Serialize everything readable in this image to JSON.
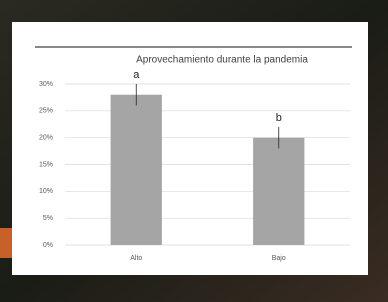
{
  "chart_data": {
    "type": "bar",
    "title": "Aprovechamiento durante la pandemia",
    "categories": [
      "Alto",
      "Bajo"
    ],
    "values": [
      28,
      20
    ],
    "errors": [
      2,
      2
    ],
    "annotations": [
      "a",
      "b"
    ],
    "color": "#a5a5a5",
    "ylim": [
      0,
      30
    ],
    "yticks": [
      {
        "value": 0,
        "label": "0%"
      },
      {
        "value": 5,
        "label": "5%"
      },
      {
        "value": 10,
        "label": "10%"
      },
      {
        "value": 15,
        "label": "15%"
      },
      {
        "value": 20,
        "label": "20%"
      },
      {
        "value": 25,
        "label": "25%"
      },
      {
        "value": 30,
        "label": "30%"
      }
    ],
    "grid": true
  }
}
